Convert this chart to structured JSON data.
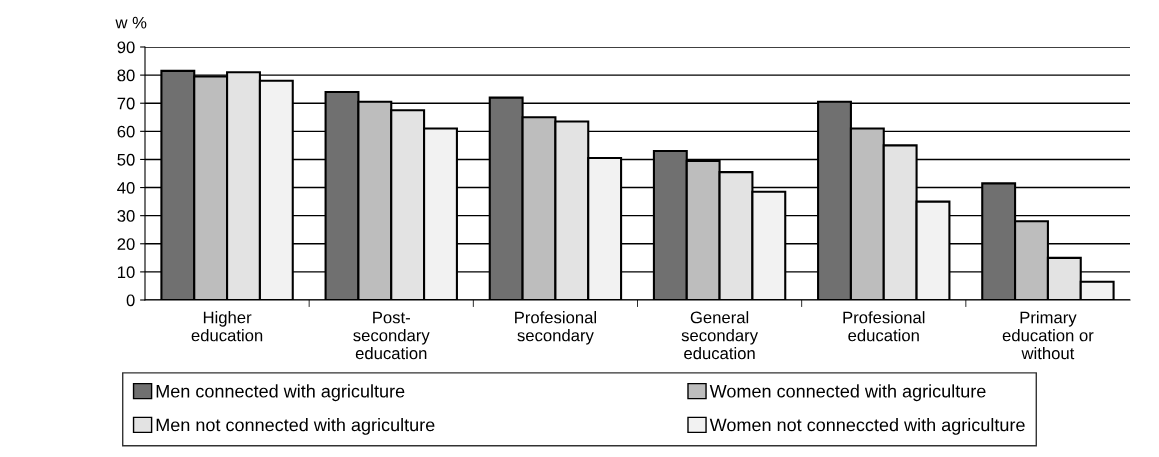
{
  "chart_data": {
    "type": "bar",
    "ylabel": "w %",
    "categories": [
      "Higher\neducation",
      "Post-\nsecondary\neducation",
      "Profesional\nsecondary",
      "General\nsecondary\neducation",
      "Profesional\neducation",
      "Primary\neducation or\nwithout"
    ],
    "series": [
      {
        "name": "Men connected with agriculture",
        "color": "#707070",
        "values": [
          81.5,
          74,
          72,
          53,
          70.5,
          41.5
        ]
      },
      {
        "name": "Women connected with agriculture",
        "color": "#bdbdbd",
        "values": [
          79.5,
          70.5,
          65,
          49.5,
          61,
          28
        ]
      },
      {
        "name": "Men not connected with agriculture",
        "color": "#e3e3e3",
        "values": [
          81,
          67.5,
          63.5,
          45.5,
          55,
          15
        ]
      },
      {
        "name": "Women not conneccted with agriculture",
        "color": "#f2f2f2",
        "values": [
          78,
          61,
          50.5,
          38.5,
          35,
          6.5
        ]
      }
    ],
    "ylim": [
      0,
      90
    ],
    "yticks": [
      0,
      10,
      20,
      30,
      40,
      50,
      60,
      70,
      80,
      90
    ],
    "grid": "y",
    "legend": "bottom"
  }
}
